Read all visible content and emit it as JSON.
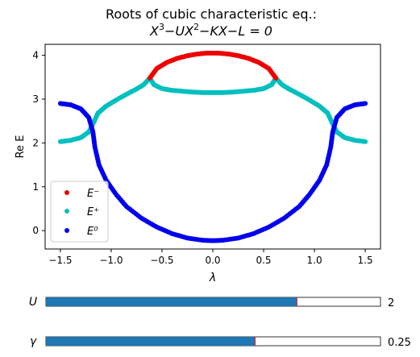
{
  "chart_data": {
    "type": "scatter",
    "title_line1": "Roots of cubic characteristic eq.:",
    "title_line2_parts": [
      "X",
      "3",
      "−UX",
      "2",
      "−KX−L = 0"
    ],
    "xlabel": "λ",
    "ylabel": "Re E",
    "xlim": [
      -1.65,
      1.65
    ],
    "ylim": [
      -0.42,
      4.25
    ],
    "xticks": [
      -1.5,
      -1.0,
      -0.5,
      0.0,
      0.5,
      1.0,
      1.5
    ],
    "xtick_labels": [
      "−1.5",
      "−1.0",
      "−0.5",
      "0.0",
      "0.5",
      "1.0",
      "1.5"
    ],
    "yticks": [
      0,
      1,
      2,
      3,
      4
    ],
    "ytick_labels": [
      "0",
      "1",
      "2",
      "3",
      "4"
    ],
    "legend_position": "lower-left",
    "series": [
      {
        "name": "E⁻",
        "color": "#ee0000",
        "points": [
          [
            -0.62,
            3.48
          ],
          [
            -0.55,
            3.7
          ],
          [
            -0.45,
            3.84
          ],
          [
            -0.35,
            3.93
          ],
          [
            -0.25,
            3.99
          ],
          [
            -0.15,
            4.03
          ],
          [
            -0.05,
            4.05
          ],
          [
            0.05,
            4.05
          ],
          [
            0.15,
            4.03
          ],
          [
            0.25,
            3.99
          ],
          [
            0.35,
            3.93
          ],
          [
            0.45,
            3.84
          ],
          [
            0.55,
            3.7
          ],
          [
            0.62,
            3.48
          ]
        ]
      },
      {
        "name": "E⁺",
        "color": "#00bfbf",
        "points": [
          [
            -1.5,
            2.03
          ],
          [
            -1.4,
            2.06
          ],
          [
            -1.3,
            2.12
          ],
          [
            -1.22,
            2.25
          ],
          [
            -1.17,
            2.48
          ],
          [
            -1.13,
            2.68
          ],
          [
            -1.05,
            2.84
          ],
          [
            -0.95,
            2.98
          ],
          [
            -0.85,
            3.11
          ],
          [
            -0.75,
            3.23
          ],
          [
            -0.68,
            3.33
          ],
          [
            -0.62,
            3.48
          ],
          [
            -0.58,
            3.33
          ],
          [
            -0.5,
            3.24
          ],
          [
            -0.4,
            3.2
          ],
          [
            -0.3,
            3.18
          ],
          [
            -0.2,
            3.16
          ],
          [
            -0.1,
            3.15
          ],
          [
            0.0,
            3.15
          ],
          [
            0.1,
            3.15
          ],
          [
            0.2,
            3.16
          ],
          [
            0.3,
            3.18
          ],
          [
            0.4,
            3.2
          ],
          [
            0.5,
            3.24
          ],
          [
            0.58,
            3.33
          ],
          [
            0.62,
            3.48
          ],
          [
            0.68,
            3.33
          ],
          [
            0.75,
            3.23
          ],
          [
            0.85,
            3.11
          ],
          [
            0.95,
            2.98
          ],
          [
            1.05,
            2.84
          ],
          [
            1.13,
            2.68
          ],
          [
            1.17,
            2.48
          ],
          [
            1.22,
            2.25
          ],
          [
            1.3,
            2.12
          ],
          [
            1.4,
            2.06
          ],
          [
            1.5,
            2.03
          ]
        ]
      },
      {
        "name": "E⁰",
        "color": "#0000ee",
        "points": [
          [
            -1.5,
            2.9
          ],
          [
            -1.4,
            2.87
          ],
          [
            -1.3,
            2.78
          ],
          [
            -1.22,
            2.58
          ],
          [
            -1.18,
            2.25
          ],
          [
            -1.16,
            1.9
          ],
          [
            -1.12,
            1.5
          ],
          [
            -1.05,
            1.15
          ],
          [
            -0.95,
            0.82
          ],
          [
            -0.85,
            0.55
          ],
          [
            -0.7,
            0.28
          ],
          [
            -0.55,
            0.08
          ],
          [
            -0.4,
            -0.07
          ],
          [
            -0.25,
            -0.17
          ],
          [
            -0.1,
            -0.22
          ],
          [
            0.0,
            -0.23
          ],
          [
            0.1,
            -0.22
          ],
          [
            0.25,
            -0.17
          ],
          [
            0.4,
            -0.07
          ],
          [
            0.55,
            0.08
          ],
          [
            0.7,
            0.28
          ],
          [
            0.85,
            0.55
          ],
          [
            0.95,
            0.82
          ],
          [
            1.05,
            1.15
          ],
          [
            1.12,
            1.5
          ],
          [
            1.16,
            1.9
          ],
          [
            1.18,
            2.25
          ],
          [
            1.22,
            2.58
          ],
          [
            1.3,
            2.78
          ],
          [
            1.4,
            2.87
          ],
          [
            1.5,
            2.9
          ]
        ]
      }
    ]
  },
  "sliders": [
    {
      "label": "U",
      "value_text": "2",
      "fill_fraction": 0.75,
      "color": "#1f77b4"
    },
    {
      "label": "γ",
      "value_text": "0.25",
      "fill_fraction": 0.625,
      "color": "#1f77b4"
    }
  ]
}
